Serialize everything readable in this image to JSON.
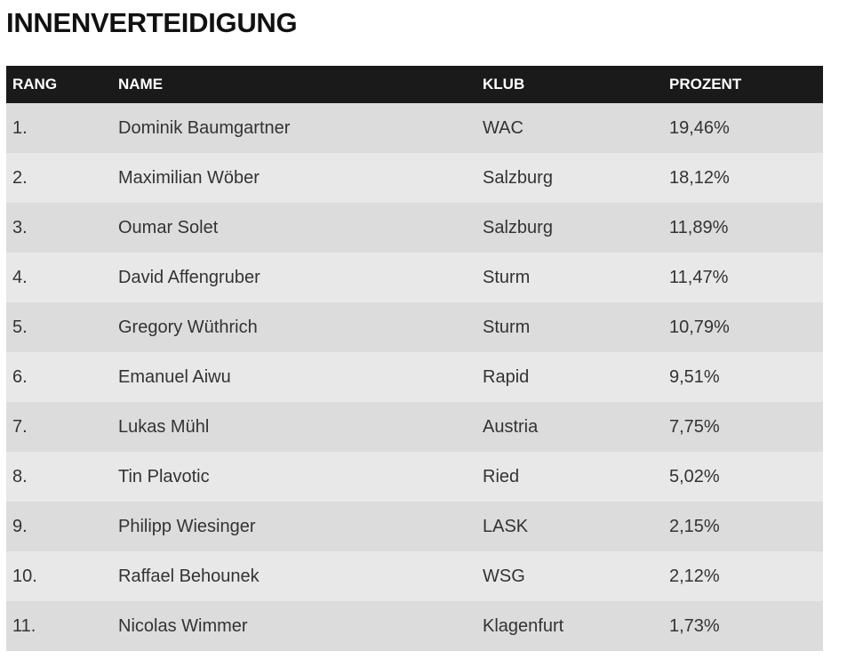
{
  "page": {
    "title": "INNENVERTEIDIGUNG"
  },
  "table": {
    "headers": {
      "rang": "RANG",
      "name": "NAME",
      "klub": "KLUB",
      "prozent": "PROZENT"
    },
    "rows": [
      {
        "rang": "1.",
        "name": "Dominik Baumgartner",
        "klub": "WAC",
        "prozent": "19,46%"
      },
      {
        "rang": "2.",
        "name": "Maximilian Wöber",
        "klub": "Salzburg",
        "prozent": "18,12%"
      },
      {
        "rang": "3.",
        "name": "Oumar Solet",
        "klub": "Salzburg",
        "prozent": "11,89%"
      },
      {
        "rang": "4.",
        "name": "David Affengruber",
        "klub": "Sturm",
        "prozent": "11,47%"
      },
      {
        "rang": "5.",
        "name": "Gregory Wüthrich",
        "klub": "Sturm",
        "prozent": "10,79%"
      },
      {
        "rang": "6.",
        "name": "Emanuel Aiwu",
        "klub": "Rapid",
        "prozent": "9,51%"
      },
      {
        "rang": "7.",
        "name": "Lukas Mühl",
        "klub": "Austria",
        "prozent": "7,75%"
      },
      {
        "rang": "8.",
        "name": "Tin Plavotic",
        "klub": "Ried",
        "prozent": "5,02%"
      },
      {
        "rang": "9.",
        "name": "Philipp Wiesinger",
        "klub": "LASK",
        "prozent": "2,15%"
      },
      {
        "rang": "10.",
        "name": "Raffael Behounek",
        "klub": "WSG",
        "prozent": "2,12%"
      },
      {
        "rang": "11.",
        "name": "Nicolas Wimmer",
        "klub": "Klagenfurt",
        "prozent": "1,73%"
      }
    ]
  },
  "colors": {
    "header_bg": "#1a1a1a",
    "header_text": "#ffffff",
    "row_odd_bg": "#dcdcdc",
    "row_even_bg": "#e8e8e8",
    "cell_text": "#333333",
    "title_text": "#111111"
  }
}
